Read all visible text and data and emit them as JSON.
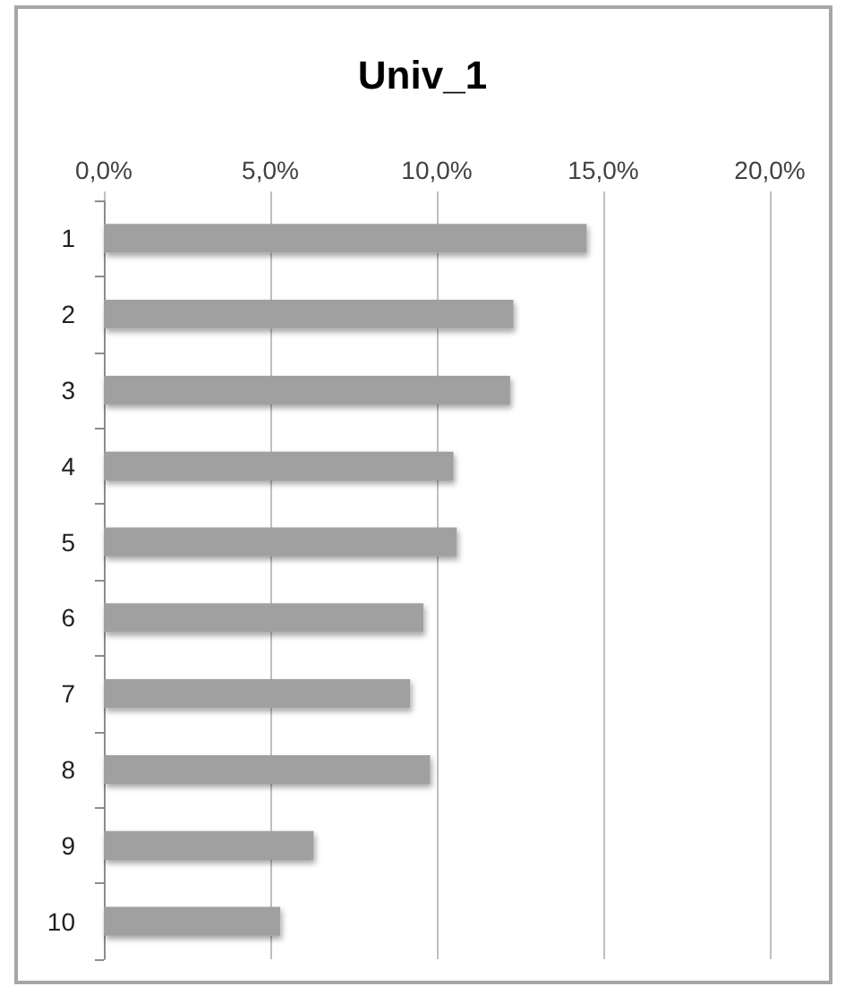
{
  "chart_data": {
    "type": "bar",
    "title": "Univ_1",
    "orientation": "horizontal",
    "categories": [
      "1",
      "2",
      "3",
      "4",
      "5",
      "6",
      "7",
      "8",
      "9",
      "10"
    ],
    "values": [
      14.5,
      12.3,
      12.2,
      10.5,
      10.6,
      9.6,
      9.2,
      9.8,
      6.3,
      5.3
    ],
    "color": "#a0a0a0",
    "xlim": [
      0,
      20
    ],
    "xticks": [
      {
        "value": 0,
        "label": "0,0%"
      },
      {
        "value": 5,
        "label": "5,0%"
      },
      {
        "value": 10,
        "label": "10,0%"
      },
      {
        "value": 15,
        "label": "15,0%"
      },
      {
        "value": 20,
        "label": "20,0%"
      }
    ],
    "grid": "x"
  }
}
